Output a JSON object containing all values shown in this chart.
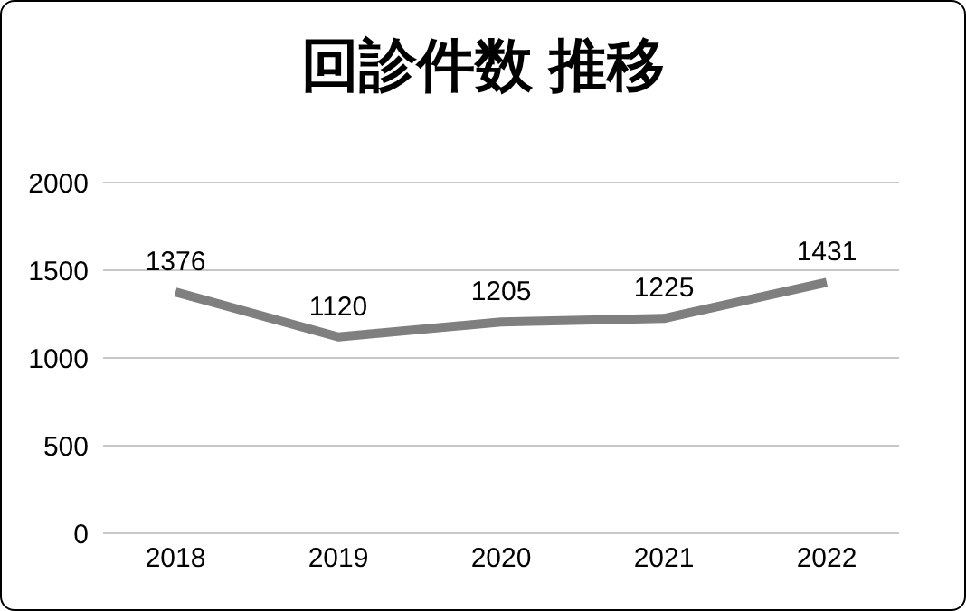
{
  "chart_data": {
    "type": "line",
    "title": "回診件数 推移",
    "categories": [
      "2018",
      "2019",
      "2020",
      "2021",
      "2022"
    ],
    "series": [
      {
        "color": "#7f7f7f",
        "values": [
          1376,
          1120,
          1205,
          1225,
          1431
        ]
      }
    ],
    "ylim": [
      0,
      2000
    ],
    "yticks": [
      0,
      500,
      1000,
      1500,
      2000
    ],
    "grid": "y",
    "data_labels": true,
    "marker": "none",
    "line_style": "solid"
  }
}
